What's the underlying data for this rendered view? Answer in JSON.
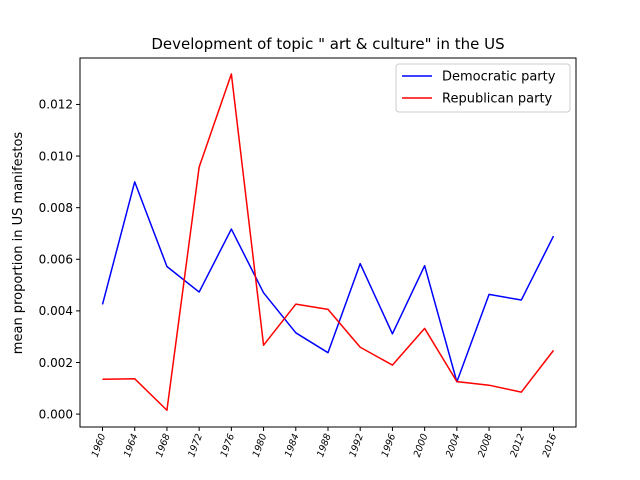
{
  "chart_data": {
    "type": "line",
    "title": "Development of topic \" art & culture\" in the US",
    "xlabel": "",
    "ylabel": "mean proportion in US manifestos",
    "categories": [
      "1960",
      "1964",
      "1968",
      "1972",
      "1976",
      "1980",
      "1984",
      "1988",
      "1992",
      "1996",
      "2000",
      "2004",
      "2008",
      "2012",
      "2016"
    ],
    "ylim": [
      -0.0005,
      0.0138
    ],
    "yticks": [
      0.0,
      0.002,
      0.004,
      0.006,
      0.008,
      0.01,
      0.012
    ],
    "ytick_labels": [
      "0.000",
      "0.002",
      "0.004",
      "0.006",
      "0.008",
      "0.010",
      "0.012"
    ],
    "legend_position": "top-right",
    "series": [
      {
        "name": "Democratic party",
        "color": "#0000ff",
        "values": [
          0.00425,
          0.009,
          0.00572,
          0.00473,
          0.00717,
          0.0047,
          0.00315,
          0.00238,
          0.00583,
          0.00311,
          0.00575,
          0.00125,
          0.00464,
          0.00442,
          0.0069
        ]
      },
      {
        "name": "Republican party",
        "color": "#ff0000",
        "values": [
          0.00135,
          0.00137,
          0.00015,
          0.00957,
          0.01318,
          0.00267,
          0.00426,
          0.00406,
          0.00259,
          0.0019,
          0.00332,
          0.00126,
          0.00112,
          0.00085,
          0.00247
        ]
      }
    ]
  }
}
